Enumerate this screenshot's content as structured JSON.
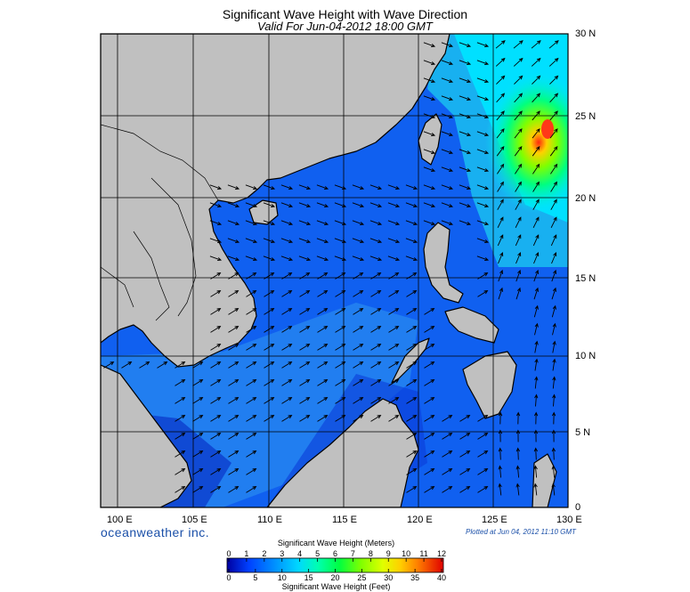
{
  "header": {
    "title": "Significant Wave Height with Wave Direction",
    "subtitle": "Valid For Jun-04-2012 18:00 GMT"
  },
  "axes": {
    "lon_labels": [
      "100 E",
      "105 E",
      "110 E",
      "115 E",
      "120 E",
      "125 E",
      "130 E"
    ],
    "lat_labels": [
      "0",
      "5 N",
      "10 N",
      "15 N",
      "20 N",
      "25 N",
      "30 N"
    ]
  },
  "footer": {
    "brand": "oceanweather inc.",
    "plotted": "Plotted at Jun 04, 2012 11:10 GMT"
  },
  "colorbar": {
    "title_top": "Significant Wave Height (Meters)",
    "title_bottom": "Significant Wave Height (Feet)",
    "meter_ticks": [
      "0",
      "1",
      "2",
      "3",
      "4",
      "5",
      "6",
      "7",
      "8",
      "9",
      "10",
      "11",
      "12"
    ],
    "feet_ticks": [
      "0",
      "5",
      "10",
      "15",
      "20",
      "25",
      "30",
      "35",
      "40"
    ],
    "colors": [
      "#0000a0",
      "#0030ff",
      "#0078ff",
      "#00c8ff",
      "#00ffd0",
      "#00ff60",
      "#60ff00",
      "#d8ff00",
      "#ffe000",
      "#ff9000",
      "#ff3000",
      "#c00000"
    ]
  },
  "colors": {
    "land": "#c0c0c0",
    "ocean_low": "#0a3ddc",
    "ocean_mid": "#1e78f0",
    "ocean_high": "#00e8f0",
    "hot": "#ff4020",
    "coast": "#000000"
  },
  "chart_data": {
    "type": "heatmap",
    "title": "Significant Wave Height with Wave Direction",
    "subtitle": "Valid For Jun-04-2012 18:00 GMT",
    "xlim": [
      99,
      130
    ],
    "ylim": [
      0,
      30
    ],
    "x_ticks": [
      100,
      105,
      110,
      115,
      120,
      125,
      130
    ],
    "y_ticks": [
      0,
      5,
      10,
      15,
      20,
      25,
      30
    ],
    "grid": true,
    "colorbar_meters_range": [
      0,
      12
    ],
    "colorbar_feet_range": [
      0,
      40
    ],
    "hotspot": {
      "lon": 128,
      "lat": 24.5,
      "height_m": 10
    }
  }
}
